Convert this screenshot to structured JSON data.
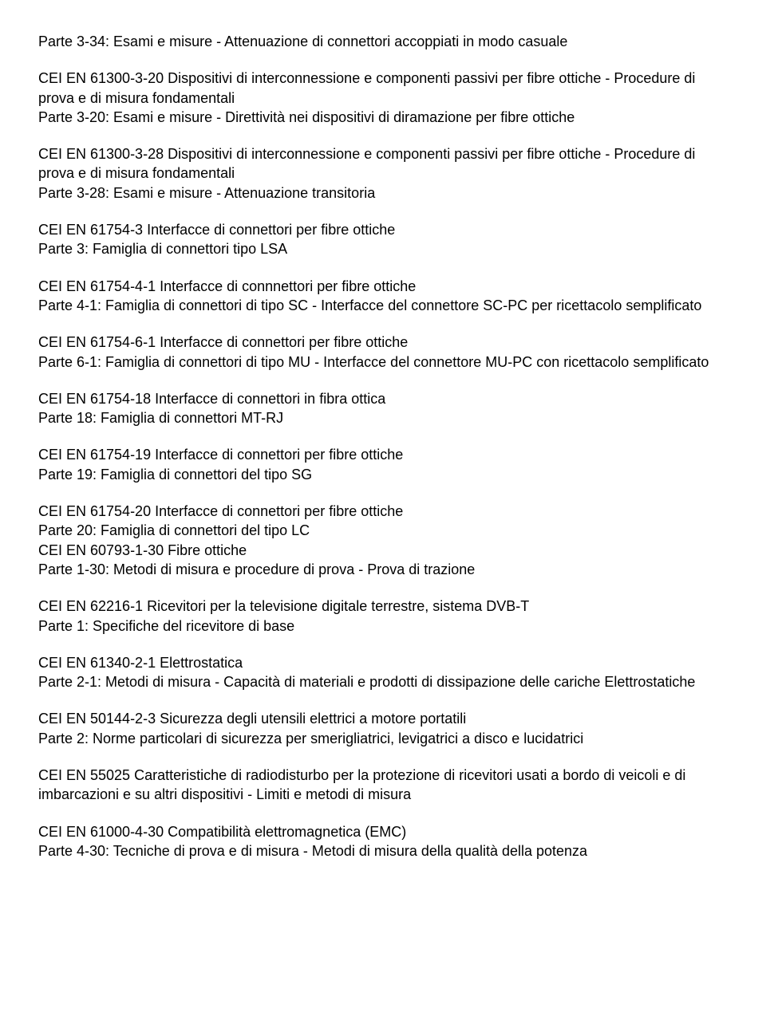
{
  "blocks": [
    {
      "lines": [
        "Parte 3-34: Esami e misure - Attenuazione di connettori accoppiati in modo casuale"
      ]
    },
    {
      "lines": [
        "CEI EN 61300-3-20 Dispositivi di interconnessione e componenti passivi per fibre ottiche - Procedure di prova e di misura fondamentali",
        "Parte 3-20: Esami e misure - Direttività nei dispositivi di diramazione per fibre ottiche"
      ]
    },
    {
      "lines": [
        "CEI EN 61300-3-28 Dispositivi di interconnessione e componenti passivi per fibre ottiche - Procedure di prova e di misura fondamentali",
        "Parte 3-28: Esami e misure - Attenuazione transitoria"
      ]
    },
    {
      "lines": [
        "CEI EN 61754-3 Interfacce di connettori per fibre ottiche",
        "Parte 3: Famiglia di connettori tipo LSA"
      ]
    },
    {
      "lines": [
        "CEI EN 61754-4-1 Interfacce di connnettori per fibre ottiche",
        "Parte 4-1: Famiglia di connettori di tipo SC - Interfacce del connettore SC-PC per ricettacolo semplificato"
      ]
    },
    {
      "lines": [
        "CEI EN 61754-6-1 Interfacce di connettori per fibre ottiche",
        "Parte 6-1: Famiglia di connettori di tipo MU - Interfacce del connettore MU-PC con ricettacolo semplificato"
      ]
    },
    {
      "lines": [
        "CEI EN 61754-18 Interfacce di connettori in fibra ottica",
        "Parte 18: Famiglia di connettori MT-RJ"
      ]
    },
    {
      "lines": [
        "CEI EN 61754-19 Interfacce di connettori per fibre ottiche",
        "Parte 19: Famiglia di connettori del tipo SG"
      ]
    },
    {
      "lines": [
        "CEI EN 61754-20 Interfacce di connettori per fibre ottiche",
        "Parte 20: Famiglia di connettori del tipo LC",
        "CEI EN 60793-1-30 Fibre ottiche",
        "Parte 1-30: Metodi di misura e procedure di prova - Prova di trazione"
      ]
    },
    {
      "lines": [
        "CEI EN 62216-1 Ricevitori per la televisione digitale terrestre, sistema DVB-T",
        "Parte 1: Specifiche del ricevitore di base"
      ]
    },
    {
      "lines": [
        "CEI EN 61340-2-1 Elettrostatica",
        "Parte 2-1: Metodi di misura - Capacità di materiali e prodotti di dissipazione delle cariche Elettrostatiche"
      ]
    },
    {
      "lines": [
        "CEI EN 50144-2-3 Sicurezza degli utensili elettrici a motore portatili",
        "Parte 2: Norme particolari di sicurezza per smerigliatrici, levigatrici a disco e lucidatrici"
      ]
    },
    {
      "lines": [
        "CEI EN 55025 Caratteristiche di radiodisturbo per la protezione di ricevitori usati a bordo di veicoli e di imbarcazioni e su altri dispositivi - Limiti e metodi di misura"
      ]
    },
    {
      "lines": [
        "CEI EN 61000-4-30 Compatibilità elettromagnetica (EMC)",
        "Parte 4-30: Tecniche di prova e di misura - Metodi di misura della qualità della potenza"
      ]
    }
  ]
}
